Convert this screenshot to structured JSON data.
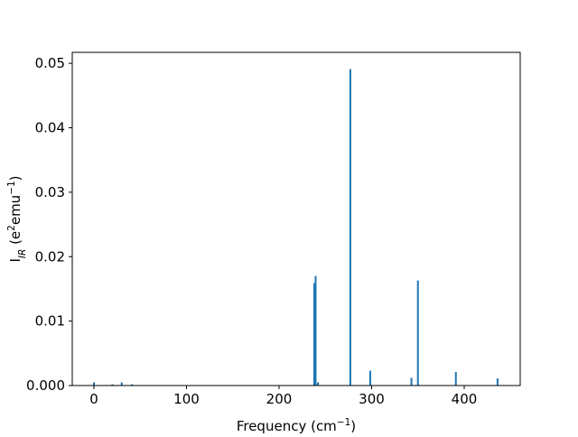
{
  "chart_data": {
    "type": "bar",
    "x": [
      0,
      20,
      30,
      41,
      238,
      239.5,
      242,
      277,
      298.5,
      343,
      350,
      391,
      436
    ],
    "values": [
      0.0005,
      0.0002,
      0.0005,
      0.0002,
      0.0159,
      0.017,
      0.0005,
      0.0491,
      0.0023,
      0.0012,
      0.0163,
      0.0021,
      0.0011
    ],
    "color": "#1f77b4",
    "xlim": [
      -23.4,
      460.5
    ],
    "ylim": [
      0,
      0.0517
    ],
    "xticks": [
      0,
      100,
      200,
      300,
      400
    ],
    "yticks": [
      {
        "value": 0,
        "label": "0.000"
      },
      {
        "value": 0.01,
        "label": "0.01"
      },
      {
        "value": 0.02,
        "label": "0.02"
      },
      {
        "value": 0.03,
        "label": "0.03"
      },
      {
        "value": 0.04,
        "label": "0.04"
      },
      {
        "value": 0.05,
        "label": "0.05"
      }
    ],
    "xlabel_parts": [
      {
        "text": "Frequency (cm"
      },
      {
        "text": "−1",
        "style": "sup"
      },
      {
        "text": ")"
      }
    ],
    "ylabel_parts": [
      {
        "text": "I"
      },
      {
        "text": "IR",
        "style": "sub"
      },
      {
        "text": " (e"
      },
      {
        "text": "2",
        "style": "sup"
      },
      {
        "text": "emu"
      },
      {
        "text": "−1",
        "style": "sup"
      },
      {
        "text": ")"
      }
    ]
  }
}
